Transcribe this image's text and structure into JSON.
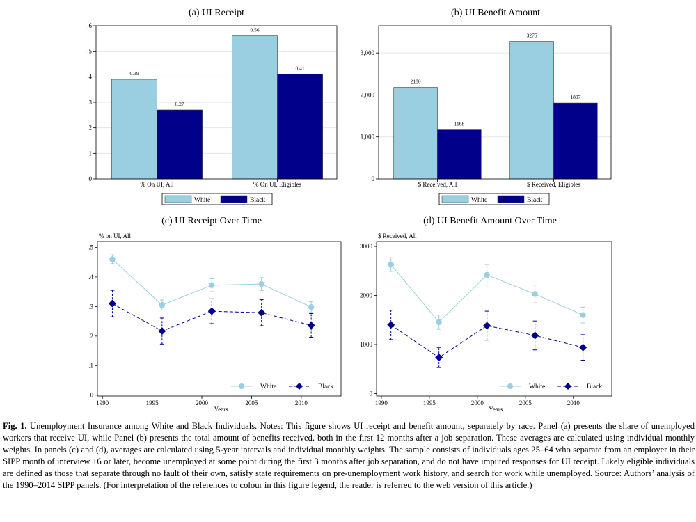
{
  "colors": {
    "white": "#99cfe1",
    "black": "#00008b",
    "grid": "#e6e6e6"
  },
  "chart_data": [
    {
      "type": "bar",
      "title": "(a) UI Receipt",
      "categories": [
        "% On UI, All",
        "% On UI, Eligibles"
      ],
      "series": [
        {
          "name": "White",
          "values": [
            0.39,
            0.56
          ],
          "labels": [
            "0.39",
            "0.56"
          ]
        },
        {
          "name": "Black",
          "values": [
            0.27,
            0.41
          ],
          "labels": [
            "0.27",
            "0.41"
          ]
        }
      ],
      "ylim": [
        0,
        0.6
      ],
      "yticks": [
        0,
        0.1,
        0.2,
        0.3,
        0.4,
        0.5,
        0.6
      ],
      "ytick_labels": [
        "0",
        ".1",
        ".2",
        ".3",
        ".4",
        ".5",
        ".6"
      ],
      "legend": [
        "White",
        "Black"
      ],
      "legend_position": "bottom"
    },
    {
      "type": "bar",
      "title": "(b) UI Benefit Amount",
      "categories": [
        "$ Received, All",
        "$ Received, Eligibles"
      ],
      "series": [
        {
          "name": "White",
          "values": [
            2180,
            3275
          ],
          "labels": [
            "2180",
            "3275"
          ]
        },
        {
          "name": "Black",
          "values": [
            1168,
            1807
          ],
          "labels": [
            "1168",
            "1807"
          ]
        }
      ],
      "ylim": [
        0,
        3650
      ],
      "yticks": [
        0,
        1000,
        2000,
        3000
      ],
      "ytick_labels": [
        "0",
        "1,000",
        "2,000",
        "3,000"
      ],
      "legend": [
        "White",
        "Black"
      ],
      "legend_position": "bottom"
    },
    {
      "type": "line",
      "title": "(c) UI Receipt Over Time",
      "ylabel": "% on UI, All",
      "xlabel": "Years",
      "x": [
        1991,
        1996,
        2001,
        2006,
        2011
      ],
      "series": [
        {
          "name": "White",
          "values": [
            0.46,
            0.305,
            0.372,
            0.376,
            0.298
          ],
          "ci": [
            [
              0.445,
              0.475
            ],
            [
              0.288,
              0.322
            ],
            [
              0.35,
              0.394
            ],
            [
              0.354,
              0.398
            ],
            [
              0.28,
              0.316
            ]
          ]
        },
        {
          "name": "Black",
          "values": [
            0.31,
            0.217,
            0.284,
            0.279,
            0.236
          ],
          "ci": [
            [
              0.265,
              0.355
            ],
            [
              0.173,
              0.261
            ],
            [
              0.242,
              0.326
            ],
            [
              0.235,
              0.323
            ],
            [
              0.196,
              0.276
            ]
          ]
        }
      ],
      "xlim": [
        1989.5,
        2014
      ],
      "ylim": [
        -0.003,
        0.52
      ],
      "xticks": [
        1990,
        1995,
        2000,
        2005,
        2010
      ],
      "xtick_labels": [
        "1990",
        "1995",
        "2000",
        "2005",
        "2010"
      ],
      "yticks": [
        0,
        0.1,
        0.2,
        0.3,
        0.4,
        0.5
      ],
      "ytick_labels": [
        "0",
        ".1",
        ".2",
        ".3",
        ".4",
        ".5"
      ],
      "legend": [
        "White",
        "Black"
      ],
      "legend_position": "bottom-right"
    },
    {
      "type": "line",
      "title": "(d) UI Benefit Amount Over Time",
      "ylabel": "$ Received, All",
      "xlabel": "Years",
      "x": [
        1991,
        1996,
        2001,
        2006,
        2011
      ],
      "series": [
        {
          "name": "White",
          "values": [
            2630,
            1455,
            2420,
            2030,
            1600
          ],
          "ci": [
            [
              2490,
              2770
            ],
            [
              1310,
              1600
            ],
            [
              2210,
              2630
            ],
            [
              1850,
              2210
            ],
            [
              1440,
              1760
            ]
          ]
        },
        {
          "name": "Black",
          "values": [
            1400,
            735,
            1385,
            1185,
            940
          ],
          "ci": [
            [
              1100,
              1700
            ],
            [
              530,
              940
            ],
            [
              1090,
              1680
            ],
            [
              890,
              1480
            ],
            [
              680,
              1200
            ]
          ]
        }
      ],
      "xlim": [
        1989.5,
        2014
      ],
      "ylim": [
        -50,
        3100
      ],
      "xticks": [
        1990,
        1995,
        2000,
        2005,
        2010
      ],
      "xtick_labels": [
        "1990",
        "1995",
        "2000",
        "2005",
        "2010"
      ],
      "yticks": [
        0,
        1000,
        2000,
        3000
      ],
      "ytick_labels": [
        "0",
        "1000",
        "2000",
        "3000"
      ],
      "legend": [
        "White",
        "Black"
      ],
      "legend_position": "bottom-right"
    }
  ],
  "caption": {
    "label": "Fig. 1.",
    "text": " Unemployment Insurance among White and Black Individuals. Notes: This figure shows UI receipt and benefit amount, separately by race. Panel (a) presents the share of unemployed workers that receive UI, while Panel (b) presents the total amount of benefits received, both in the first 12 months after a job separation. These averages are calculated using individual monthly weights. In panels (c) and (d), averages are calculated using 5-year intervals and individual monthly weights. The sample consists of individuals ages 25–64 who separate from an employer in their SIPP month of interview 16 or later, become unemployed at some point during the first 3 months after job separation, and do not have imputed responses for UI receipt. Likely eligible individuals are defined as those that separate through no fault of their own, satisfy state requirements on pre-unemployment work history, and search for work while unemployed. Source: Authors’ analysis of the 1990–2014 SIPP panels. (For interpretation of the references to colour in this figure legend, the reader is referred to the web version of this article.)"
  }
}
